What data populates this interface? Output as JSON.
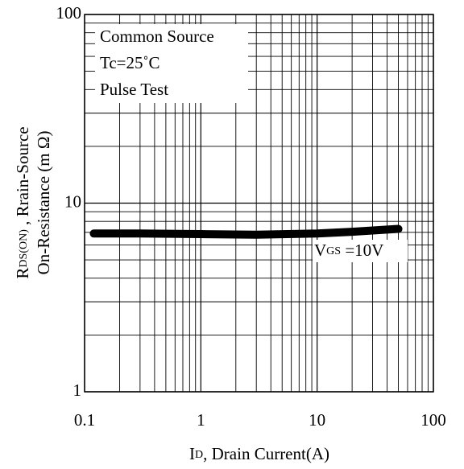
{
  "chart_data": {
    "type": "line",
    "x_label": {
      "main": "I",
      "sub": "D",
      "rest": ", Drain Current(A)"
    },
    "y_label": {
      "line1_main": "R",
      "line1_sub": "DS(ON)",
      "line1_rest": " , Rrain-Source",
      "line2": "On-Resistance (m Ω)"
    },
    "annotations": [
      "Common Source",
      "Tc=25˚C",
      "Pulse Test"
    ],
    "series": [
      {
        "name": {
          "main": "V",
          "sub": "GS",
          "rest": " =10V"
        },
        "color": "#000000",
        "x": [
          0.12,
          0.3,
          1,
          3,
          10,
          20,
          50
        ],
        "values": [
          6.9,
          6.9,
          6.85,
          6.8,
          6.9,
          7.05,
          7.3
        ]
      }
    ],
    "xlim": [
      0.1,
      100
    ],
    "ylim": [
      1,
      100
    ],
    "xticks": [
      0.1,
      1,
      10,
      100
    ],
    "yticks": [
      1,
      10,
      100
    ],
    "xlog": true,
    "ylog": true,
    "grid": true,
    "minor_grid": true
  }
}
